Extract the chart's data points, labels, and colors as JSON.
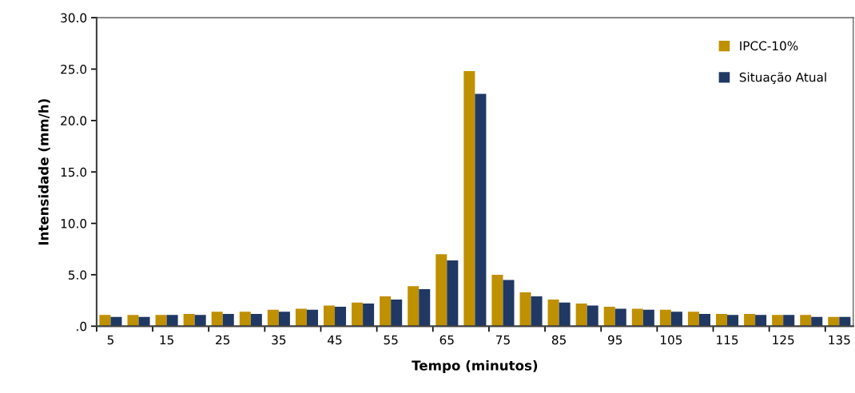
{
  "chart_data": {
    "type": "bar",
    "xlabel": "Tempo (minutos)",
    "ylabel": "Intensidade (mm/h)",
    "categories": [
      "5",
      null,
      "15",
      null,
      "25",
      null,
      "35",
      null,
      "45",
      null,
      "55",
      null,
      "65",
      null,
      "75",
      null,
      "85",
      null,
      "95",
      null,
      "105",
      null,
      "115",
      null,
      "125",
      null,
      "135"
    ],
    "series": [
      {
        "name": "IPCC-10%",
        "color": "#bf9000",
        "values": [
          1.1,
          1.1,
          1.1,
          1.2,
          1.4,
          1.4,
          1.6,
          1.7,
          2.0,
          2.3,
          2.9,
          3.9,
          7.0,
          24.8,
          5.0,
          3.3,
          2.6,
          2.2,
          1.9,
          1.7,
          1.6,
          1.4,
          1.2,
          1.2,
          1.1,
          1.1,
          0.9
        ]
      },
      {
        "name": "Situação Atual",
        "color": "#203864",
        "values": [
          0.9,
          0.9,
          1.1,
          1.1,
          1.2,
          1.2,
          1.4,
          1.6,
          1.9,
          2.2,
          2.6,
          3.6,
          6.4,
          22.6,
          4.5,
          2.9,
          2.3,
          2.0,
          1.7,
          1.6,
          1.4,
          1.2,
          1.1,
          1.1,
          1.1,
          0.9,
          0.9
        ]
      }
    ],
    "ylim": [
      0,
      30
    ],
    "yticks": [
      {
        "value": 0,
        "label": ".0"
      },
      {
        "value": 5,
        "label": "5.0"
      },
      {
        "value": 10,
        "label": "10.0"
      },
      {
        "value": 15,
        "label": "15.0"
      },
      {
        "value": 20,
        "label": "20.0"
      },
      {
        "value": 25,
        "label": "25.0"
      },
      {
        "value": 30,
        "label": "30.0"
      }
    ],
    "grid": false,
    "legend": "top right"
  }
}
